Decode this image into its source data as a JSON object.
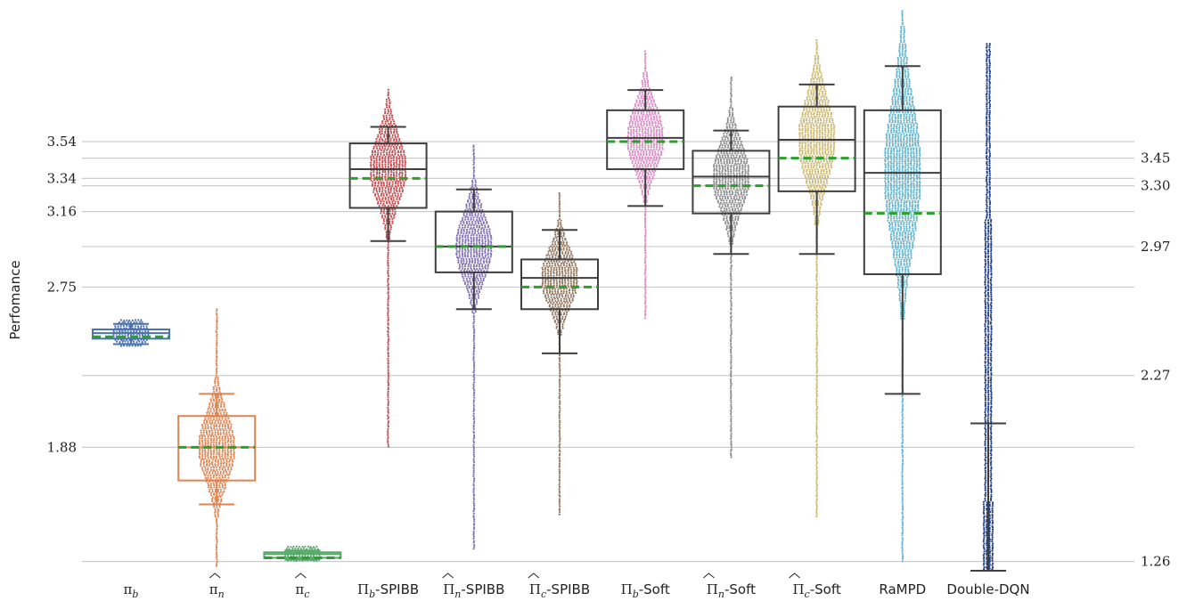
{
  "chart_data": {
    "type": "box",
    "ylabel": "Perfomance",
    "left_ticks": [
      "3.54",
      "3.34",
      "3.16",
      "2.75",
      "1.88"
    ],
    "right_ticks": [
      "3.45",
      "3.30",
      "2.97",
      "2.27",
      "1.26"
    ],
    "gridlines": [
      3.54,
      3.45,
      3.34,
      3.3,
      3.16,
      2.97,
      2.75,
      2.27,
      1.88,
      1.26
    ],
    "ylim": [
      1.21,
      4.27
    ],
    "mean_color": "#2ca02c",
    "categories": [
      {
        "label": "π",
        "sub": "b",
        "hat": false,
        "suffix": "",
        "color": "#4c72b0",
        "whisker_low": 2.44,
        "q1": 2.47,
        "median": 2.5,
        "q3": 2.52,
        "whisker_high": 2.55,
        "mean": 2.48,
        "points_low": 2.43,
        "points_high": 2.57
      },
      {
        "label": "π",
        "sub": "n",
        "hat": true,
        "suffix": "",
        "color": "#dd8452",
        "whisker_low": 1.57,
        "q1": 1.7,
        "median": 1.88,
        "q3": 2.05,
        "whisker_high": 2.17,
        "mean": 1.88,
        "points_low": 1.23,
        "points_high": 2.63
      },
      {
        "label": "π",
        "sub": "c",
        "hat": true,
        "suffix": "",
        "color": "#55a868",
        "whisker_low": 1.27,
        "q1": 1.28,
        "median": 1.3,
        "q3": 1.31,
        "whisker_high": 1.32,
        "mean": 1.28,
        "points_low": 1.26,
        "points_high": 1.34
      },
      {
        "label": "Π",
        "sub": "b",
        "hat": false,
        "suffix": "-SPIBB",
        "color": "#c44e52",
        "whisker_low": 3.0,
        "q1": 3.18,
        "median": 3.39,
        "q3": 3.53,
        "whisker_high": 3.62,
        "mean": 3.34,
        "points_low": 1.88,
        "points_high": 3.82
      },
      {
        "label": "Π",
        "sub": "n",
        "hat": true,
        "suffix": "-SPIBB",
        "color": "#8172b3",
        "whisker_low": 2.63,
        "q1": 2.83,
        "median": 2.97,
        "q3": 3.16,
        "whisker_high": 3.28,
        "mean": 2.97,
        "points_low": 1.32,
        "points_high": 3.52
      },
      {
        "label": "Π",
        "sub": "c",
        "hat": true,
        "suffix": "-SPIBB",
        "color": "#937860",
        "whisker_low": 2.39,
        "q1": 2.63,
        "median": 2.8,
        "q3": 2.9,
        "whisker_high": 3.06,
        "mean": 2.75,
        "points_low": 1.51,
        "points_high": 3.26
      },
      {
        "label": "Π",
        "sub": "b",
        "hat": false,
        "suffix": "-Soft",
        "color": "#da8bc3",
        "whisker_low": 3.19,
        "q1": 3.39,
        "median": 3.56,
        "q3": 3.71,
        "whisker_high": 3.82,
        "mean": 3.54,
        "points_low": 2.58,
        "points_high": 4.03
      },
      {
        "label": "Π",
        "sub": "n",
        "hat": true,
        "suffix": "-Soft",
        "color": "#8c8c8c",
        "whisker_low": 2.93,
        "q1": 3.15,
        "median": 3.35,
        "q3": 3.49,
        "whisker_high": 3.6,
        "mean": 3.3,
        "points_low": 1.82,
        "points_high": 3.89
      },
      {
        "label": "Π",
        "sub": "c",
        "hat": true,
        "suffix": "-Soft",
        "color": "#ccb974",
        "whisker_low": 2.93,
        "q1": 3.27,
        "median": 3.55,
        "q3": 3.73,
        "whisker_high": 3.85,
        "mean": 3.45,
        "points_low": 1.5,
        "points_high": 4.09
      },
      {
        "label": "RaMPD",
        "sub": "",
        "hat": false,
        "suffix": "",
        "color": "#64b5cd",
        "whisker_low": 2.17,
        "q1": 2.82,
        "median": 3.37,
        "q3": 3.71,
        "whisker_high": 3.95,
        "mean": 3.15,
        "points_low": 1.26,
        "points_high": 4.25
      },
      {
        "label": "Double-DQN",
        "sub": "",
        "hat": false,
        "suffix": "",
        "color": "#1f3c88",
        "whisker_low": 1.21,
        "q1": 1.21,
        "median": 1.21,
        "q3": 1.21,
        "whisker_high": 2.01,
        "mean": 1.21,
        "points_low": 1.21,
        "points_high": 4.07
      }
    ]
  }
}
